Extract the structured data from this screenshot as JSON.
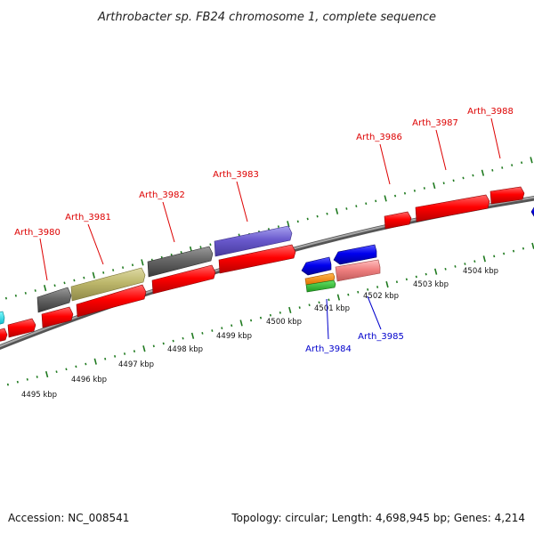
{
  "map": {
    "title": "Arthrobacter sp. FB24 chromosome 1, complete sequence",
    "accession": "Accession: NC_008541",
    "topology": "Topology: circular; Length: 4,698,945 bp; Genes: 4,214"
  },
  "colors": {
    "plus_label": "#dd0000",
    "minus_label": "#0000cc",
    "backbone": "#888888",
    "tick": "#1f7a1f"
  },
  "kbp_labels": [
    "4495 kbp",
    "4496 kbp",
    "4497 kbp",
    "4498 kbp",
    "4499 kbp",
    "4500 kbp",
    "4501 kbp",
    "4502 kbp",
    "4503 kbp",
    "4504 kbp"
  ],
  "plus_labels": [
    "Arth_3980",
    "Arth_3981",
    "Arth_3982",
    "Arth_3983",
    "Arth_3986",
    "Arth_3987",
    "Arth_3988"
  ],
  "minus_labels": [
    "Arth_3984",
    "Arth_3985"
  ]
}
